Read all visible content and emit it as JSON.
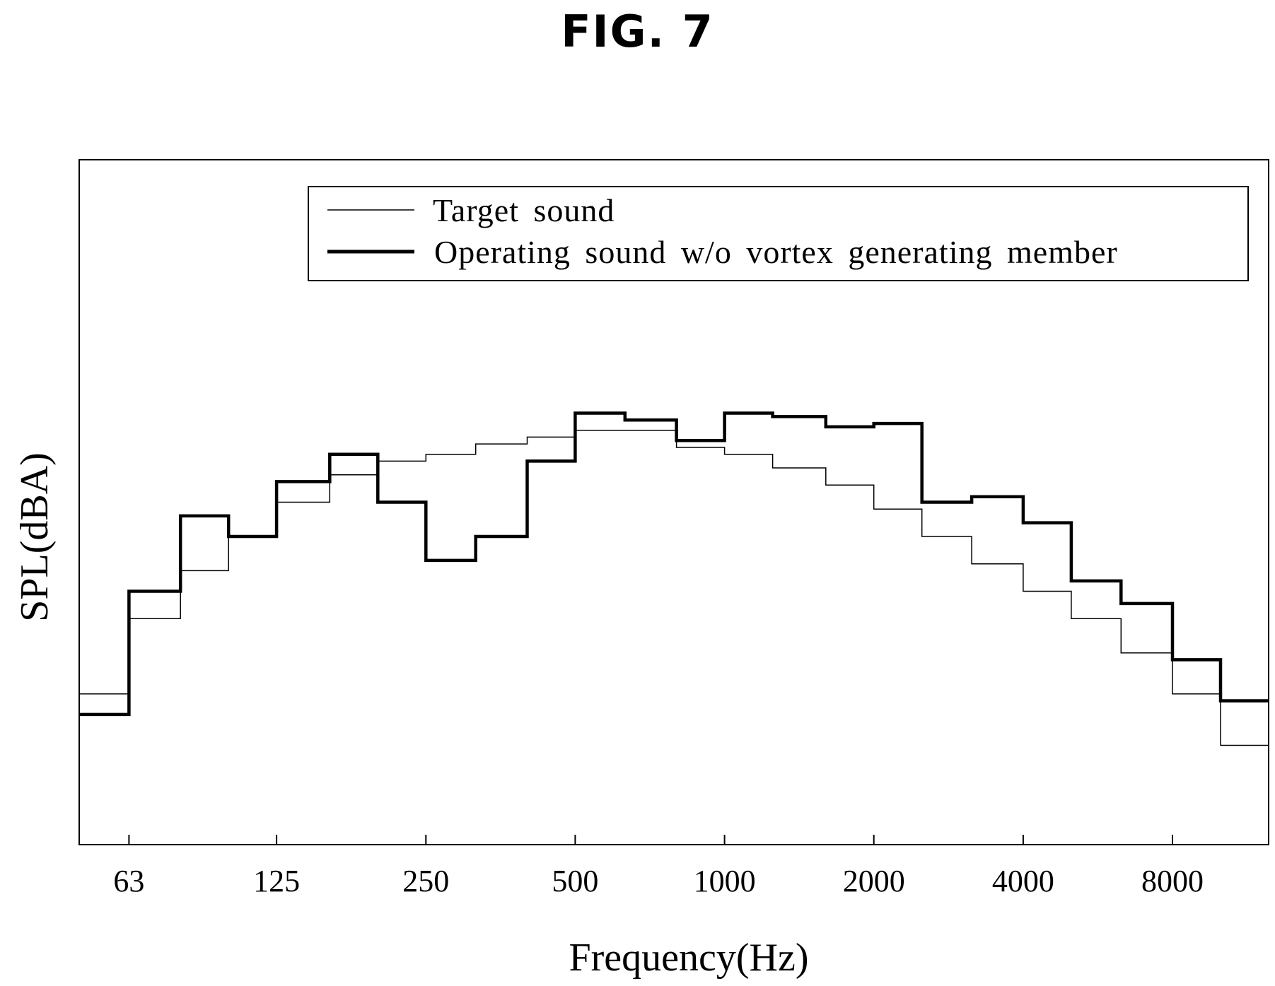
{
  "figure": {
    "label": "FIG. 7"
  },
  "chart_data": {
    "type": "line",
    "step": true,
    "title": "",
    "xlabel": "Frequency(Hz)",
    "ylabel": "SPL(dBA)",
    "x_scale": "log2",
    "x_tick_labels": [
      "63",
      "125",
      "250",
      "500",
      "1000",
      "2000",
      "4000",
      "8000"
    ],
    "y_tick_labels": [],
    "band_edges_hz": [
      50,
      63,
      80,
      100,
      125,
      160,
      200,
      250,
      315,
      400,
      500,
      630,
      800,
      1000,
      1250,
      1600,
      2000,
      2500,
      3150,
      4000,
      5000,
      6300,
      8000,
      10000,
      12500
    ],
    "ylim": [
      0,
      100
    ],
    "grid": false,
    "legend_position": "top-right",
    "series": [
      {
        "name": "Target sound",
        "line_weight": "thin",
        "values": [
          22,
          33,
          40,
          45,
          50,
          54,
          56,
          57,
          58.5,
          59.5,
          60.5,
          60.5,
          58,
          57,
          55,
          52.5,
          49,
          45,
          41,
          37,
          33,
          28,
          22,
          14.5
        ]
      },
      {
        "name": "Operating sound w/o vortex generating member",
        "line_weight": "thick",
        "values": [
          19,
          37,
          48,
          45,
          53,
          57,
          50,
          41.5,
          45,
          56,
          63,
          62,
          59,
          63,
          62.5,
          61,
          61.5,
          50,
          50.8,
          47,
          38.5,
          35.2,
          27,
          21
        ]
      }
    ]
  }
}
